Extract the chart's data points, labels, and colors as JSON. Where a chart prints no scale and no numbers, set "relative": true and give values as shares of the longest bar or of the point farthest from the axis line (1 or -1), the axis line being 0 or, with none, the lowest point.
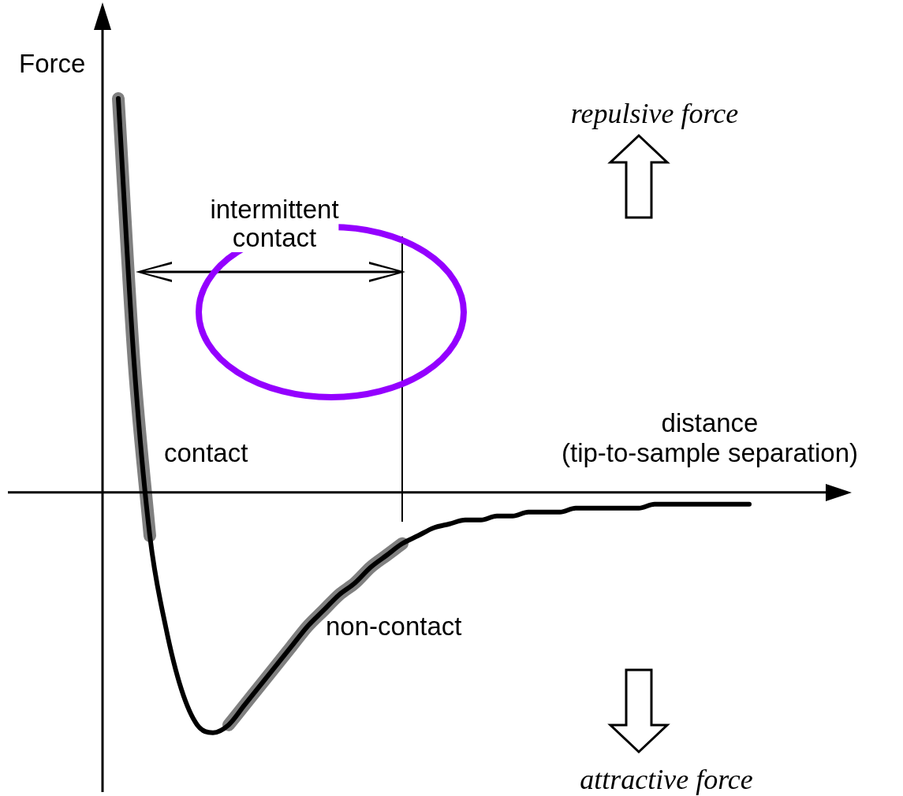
{
  "chart_data": {
    "type": "line",
    "relative": true,
    "xlabel": "distance\n(tip-to-sample separation)",
    "ylabel": "Force",
    "categories": [
      null,
      null,
      null,
      null,
      null,
      null,
      null,
      null,
      null,
      null,
      null,
      null,
      null,
      null,
      null,
      null,
      null,
      null,
      null,
      null,
      null,
      null,
      null,
      null,
      null,
      null,
      null,
      null,
      null,
      null,
      null,
      null,
      null,
      null,
      null,
      null,
      null,
      null,
      null,
      null,
      null
    ],
    "series": [
      {
        "name": "contact",
        "color": "#808080",
        "values": [
          1,
          0.33,
          -0.11,
          null,
          null,
          null,
          null,
          null,
          null,
          null,
          null,
          null,
          null,
          null,
          null,
          null,
          null,
          null,
          null,
          null,
          null,
          null,
          null,
          null,
          null,
          null,
          null,
          null,
          null,
          null,
          null,
          null,
          null,
          null,
          null,
          null,
          null,
          null,
          null,
          null,
          null
        ]
      },
      {
        "name": "non-contact",
        "color": "#808080",
        "values": [
          null,
          null,
          null,
          null,
          null,
          null,
          null,
          -0.59,
          -0.54,
          -0.49,
          -0.44,
          -0.39,
          -0.34,
          -0.3,
          -0.26,
          -0.23,
          -0.19,
          -0.16,
          -0.13,
          null,
          null,
          null,
          null,
          null,
          null,
          null,
          null,
          null,
          null,
          null,
          null,
          null,
          null,
          null,
          null,
          null,
          null,
          null,
          null,
          null,
          null
        ]
      },
      {
        "color": "#000000",
        "values": [
          1,
          0.33,
          -0.11,
          -0.34,
          -0.5,
          -0.59,
          -0.61,
          -0.59,
          -0.54,
          -0.49,
          -0.44,
          -0.39,
          -0.34,
          -0.3,
          -0.26,
          -0.23,
          -0.19,
          -0.16,
          -0.13,
          -0.11,
          -0.09,
          -0.08,
          -0.07,
          -0.07,
          -0.06,
          -0.06,
          -0.05,
          -0.05,
          -0.05,
          -0.04,
          -0.04,
          -0.04,
          -0.04,
          -0.04,
          -0.03,
          -0.03,
          -0.03,
          -0.03,
          -0.03,
          -0.03,
          -0.03
        ]
      }
    ],
    "annotations": [
      "intermittent\ncontact",
      "repulsive force",
      "attractive force"
    ],
    "legend": false,
    "marker": "none",
    "line_style": "solid"
  }
}
